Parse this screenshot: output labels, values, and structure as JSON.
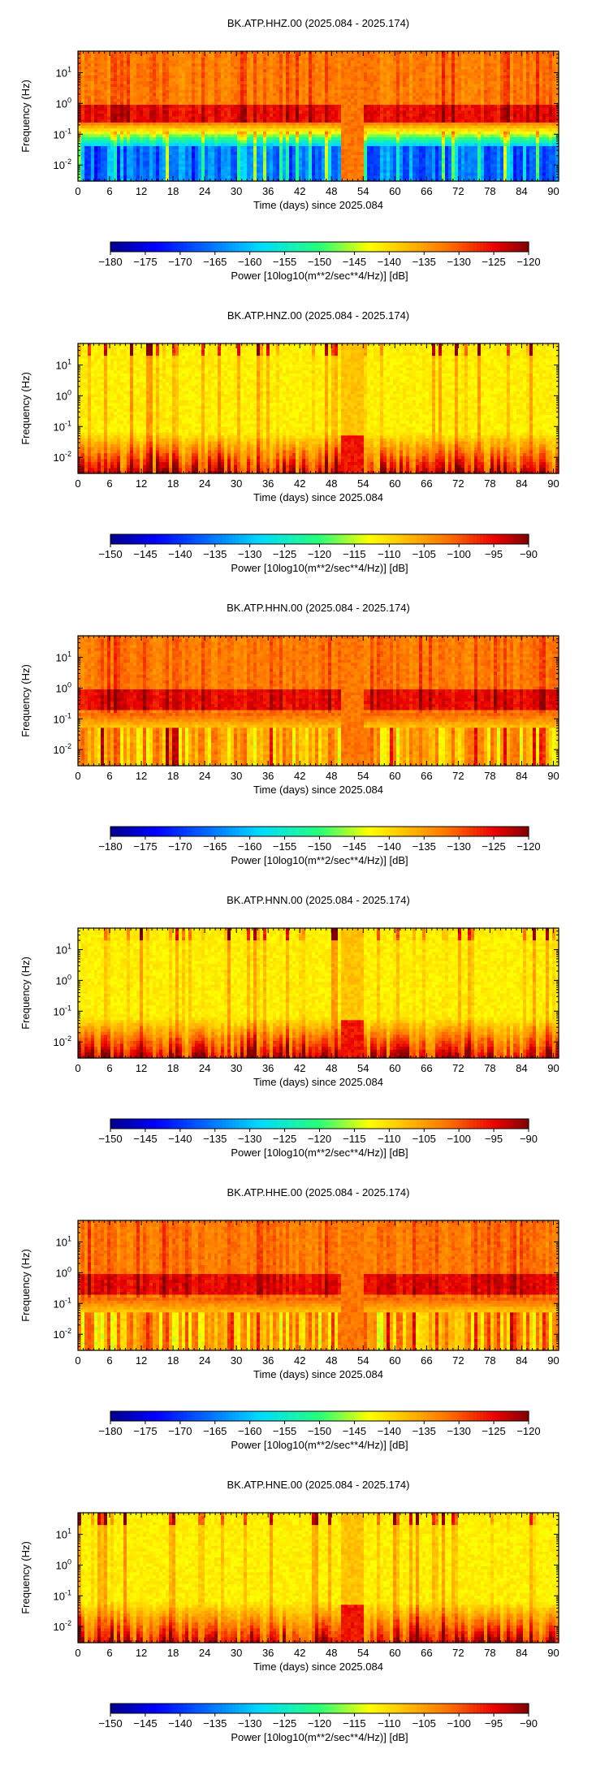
{
  "page": {
    "background": "#ffffff"
  },
  "chart_data": [
    {
      "type": "heatmap",
      "title": "BK.ATP.HHZ.00 (2025.084 - 2025.174)",
      "xlabel": "Time (days) since 2025.084",
      "ylabel": "Frequency (Hz)",
      "xlim": [
        0,
        91
      ],
      "ylim": [
        0.003,
        50
      ],
      "yscale": "log",
      "x_ticks": [
        0,
        6,
        12,
        18,
        24,
        30,
        36,
        42,
        48,
        54,
        60,
        66,
        72,
        78,
        84,
        90
      ],
      "y_ticks": [
        {
          "value": 0.01,
          "label": "10^-2"
        },
        {
          "value": 0.1,
          "label": "10^-1"
        },
        {
          "value": 1,
          "label": "10^0"
        },
        {
          "value": 10,
          "label": "10^1"
        }
      ],
      "colorbar": {
        "label": "Power [10log10(m**2/sec**4/Hz)] [dB]",
        "range": [
          -180,
          -120
        ],
        "ticks": [
          -180,
          -175,
          -170,
          -165,
          -160,
          -155,
          -150,
          -145,
          -140,
          -135,
          -130,
          -125,
          -120
        ]
      },
      "profile": "broadband-z"
    },
    {
      "type": "heatmap",
      "title": "BK.ATP.HNZ.00 (2025.084 - 2025.174)",
      "xlabel": "Time (days) since 2025.084",
      "ylabel": "Frequency (Hz)",
      "xlim": [
        0,
        91
      ],
      "ylim": [
        0.003,
        50
      ],
      "yscale": "log",
      "x_ticks": [
        0,
        6,
        12,
        18,
        24,
        30,
        36,
        42,
        48,
        54,
        60,
        66,
        72,
        78,
        84,
        90
      ],
      "y_ticks": [
        {
          "value": 0.01,
          "label": "10^-2"
        },
        {
          "value": 0.1,
          "label": "10^-1"
        },
        {
          "value": 1,
          "label": "10^0"
        },
        {
          "value": 10,
          "label": "10^1"
        }
      ],
      "colorbar": {
        "label": "Power [10log10(m**2/sec**4/Hz)] [dB]",
        "range": [
          -150,
          -90
        ],
        "ticks": [
          -150,
          -145,
          -140,
          -135,
          -130,
          -125,
          -120,
          -115,
          -110,
          -105,
          -100,
          -95,
          -90
        ]
      },
      "profile": "strongmotion"
    },
    {
      "type": "heatmap",
      "title": "BK.ATP.HHN.00 (2025.084 - 2025.174)",
      "xlabel": "Time (days) since 2025.084",
      "ylabel": "Frequency (Hz)",
      "xlim": [
        0,
        91
      ],
      "ylim": [
        0.003,
        50
      ],
      "yscale": "log",
      "x_ticks": [
        0,
        6,
        12,
        18,
        24,
        30,
        36,
        42,
        48,
        54,
        60,
        66,
        72,
        78,
        84,
        90
      ],
      "y_ticks": [
        {
          "value": 0.01,
          "label": "10^-2"
        },
        {
          "value": 0.1,
          "label": "10^-1"
        },
        {
          "value": 1,
          "label": "10^0"
        },
        {
          "value": 10,
          "label": "10^1"
        }
      ],
      "colorbar": {
        "label": "Power [10log10(m**2/sec**4/Hz)] [dB]",
        "range": [
          -180,
          -120
        ],
        "ticks": [
          -180,
          -175,
          -170,
          -165,
          -160,
          -155,
          -150,
          -145,
          -140,
          -135,
          -130,
          -125,
          -120
        ]
      },
      "profile": "broadband-h"
    },
    {
      "type": "heatmap",
      "title": "BK.ATP.HNN.00 (2025.084 - 2025.174)",
      "xlabel": "Time (days) since 2025.084",
      "ylabel": "Frequency (Hz)",
      "xlim": [
        0,
        91
      ],
      "ylim": [
        0.003,
        50
      ],
      "yscale": "log",
      "x_ticks": [
        0,
        6,
        12,
        18,
        24,
        30,
        36,
        42,
        48,
        54,
        60,
        66,
        72,
        78,
        84,
        90
      ],
      "y_ticks": [
        {
          "value": 0.01,
          "label": "10^-2"
        },
        {
          "value": 0.1,
          "label": "10^-1"
        },
        {
          "value": 1,
          "label": "10^0"
        },
        {
          "value": 10,
          "label": "10^1"
        }
      ],
      "colorbar": {
        "label": "Power [10log10(m**2/sec**4/Hz)] [dB]",
        "range": [
          -150,
          -90
        ],
        "ticks": [
          -150,
          -145,
          -140,
          -135,
          -130,
          -125,
          -120,
          -115,
          -110,
          -105,
          -100,
          -95,
          -90
        ]
      },
      "profile": "strongmotion"
    },
    {
      "type": "heatmap",
      "title": "BK.ATP.HHE.00 (2025.084 - 2025.174)",
      "xlabel": "Time (days) since 2025.084",
      "ylabel": "Frequency (Hz)",
      "xlim": [
        0,
        91
      ],
      "ylim": [
        0.003,
        50
      ],
      "yscale": "log",
      "x_ticks": [
        0,
        6,
        12,
        18,
        24,
        30,
        36,
        42,
        48,
        54,
        60,
        66,
        72,
        78,
        84,
        90
      ],
      "y_ticks": [
        {
          "value": 0.01,
          "label": "10^-2"
        },
        {
          "value": 0.1,
          "label": "10^-1"
        },
        {
          "value": 1,
          "label": "10^0"
        },
        {
          "value": 10,
          "label": "10^1"
        }
      ],
      "colorbar": {
        "label": "Power [10log10(m**2/sec**4/Hz)] [dB]",
        "range": [
          -180,
          -120
        ],
        "ticks": [
          -180,
          -175,
          -170,
          -165,
          -160,
          -155,
          -150,
          -145,
          -140,
          -135,
          -130,
          -125,
          -120
        ]
      },
      "profile": "broadband-h"
    },
    {
      "type": "heatmap",
      "title": "BK.ATP.HNE.00 (2025.084 - 2025.174)",
      "xlabel": "Time (days) since 2025.084",
      "ylabel": "Frequency (Hz)",
      "xlim": [
        0,
        91
      ],
      "ylim": [
        0.003,
        50
      ],
      "yscale": "log",
      "x_ticks": [
        0,
        6,
        12,
        18,
        24,
        30,
        36,
        42,
        48,
        54,
        60,
        66,
        72,
        78,
        84,
        90
      ],
      "y_ticks": [
        {
          "value": 0.01,
          "label": "10^-2"
        },
        {
          "value": 0.1,
          "label": "10^-1"
        },
        {
          "value": 1,
          "label": "10^0"
        },
        {
          "value": 10,
          "label": "10^1"
        }
      ],
      "colorbar": {
        "label": "Power [10log10(m**2/sec**4/Hz)] [dB]",
        "range": [
          -150,
          -90
        ],
        "ticks": [
          -150,
          -145,
          -140,
          -135,
          -130,
          -125,
          -120,
          -115,
          -110,
          -105,
          -100,
          -95,
          -90
        ]
      },
      "profile": "strongmotion"
    }
  ]
}
